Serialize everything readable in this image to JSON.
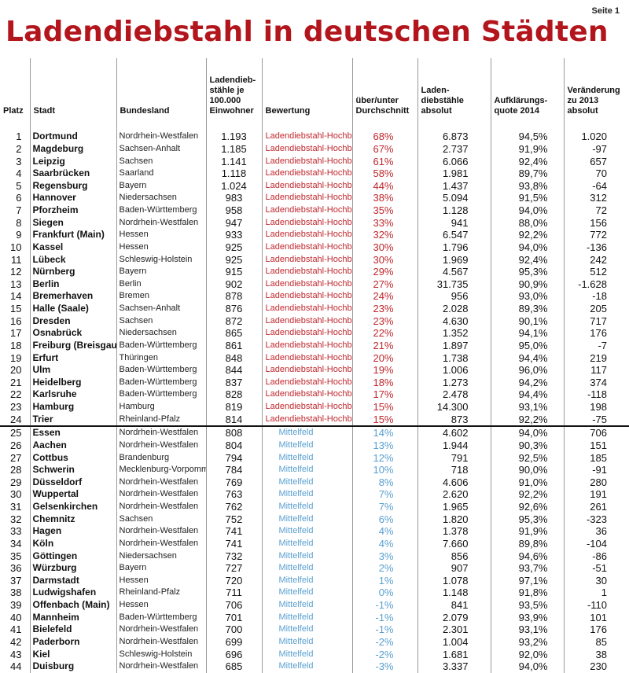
{
  "page_label": "Seite 1",
  "title": "Ladendiebstahl in deutschen Städten",
  "headers": [
    "Platz",
    "Stadt",
    "Bundesland",
    "Ladendieb-stähle je 100.000 Einwohner",
    "Bewertung",
    "über/unter Durchschnitt",
    "Laden-diebstähle absolut",
    "Aufklärungs-quote 2014",
    "Veränderung zu 2013 absolut"
  ],
  "colors": {
    "title": "#b3151c",
    "hotspot": "#c1272d",
    "average": "#5aa0d0"
  },
  "rows": [
    [
      "1",
      "Dortmund",
      "Nordrhein-Westfalen",
      "1.193",
      "Ladendiebstahl-Hochburg",
      "68%",
      "6.873",
      "94,5%",
      "1.020"
    ],
    [
      "2",
      "Magdeburg",
      "Sachsen-Anhalt",
      "1.185",
      "Ladendiebstahl-Hochburg",
      "67%",
      "2.737",
      "91,9%",
      "-97"
    ],
    [
      "3",
      "Leipzig",
      "Sachsen",
      "1.141",
      "Ladendiebstahl-Hochburg",
      "61%",
      "6.066",
      "92,4%",
      "657"
    ],
    [
      "4",
      "Saarbrücken",
      "Saarland",
      "1.118",
      "Ladendiebstahl-Hochburg",
      "58%",
      "1.981",
      "89,7%",
      "70"
    ],
    [
      "5",
      "Regensburg",
      "Bayern",
      "1.024",
      "Ladendiebstahl-Hochburg",
      "44%",
      "1.437",
      "93,8%",
      "-64"
    ],
    [
      "6",
      "Hannover",
      "Niedersachsen",
      "983",
      "Ladendiebstahl-Hochburg",
      "38%",
      "5.094",
      "91,5%",
      "312"
    ],
    [
      "7",
      "Pforzheim",
      "Baden-Württemberg",
      "958",
      "Ladendiebstahl-Hochburg",
      "35%",
      "1.128",
      "94,0%",
      "72"
    ],
    [
      "8",
      "Siegen",
      "Nordrhein-Westfalen",
      "947",
      "Ladendiebstahl-Hochburg",
      "33%",
      "941",
      "88,0%",
      "156"
    ],
    [
      "9",
      "Frankfurt (Main)",
      "Hessen",
      "933",
      "Ladendiebstahl-Hochburg",
      "32%",
      "6.547",
      "92,2%",
      "772"
    ],
    [
      "10",
      "Kassel",
      "Hessen",
      "925",
      "Ladendiebstahl-Hochburg",
      "30%",
      "1.796",
      "94,0%",
      "-136"
    ],
    [
      "11",
      "Lübeck",
      "Schleswig-Holstein",
      "925",
      "Ladendiebstahl-Hochburg",
      "30%",
      "1.969",
      "92,4%",
      "242"
    ],
    [
      "12",
      "Nürnberg",
      "Bayern",
      "915",
      "Ladendiebstahl-Hochburg",
      "29%",
      "4.567",
      "95,3%",
      "512"
    ],
    [
      "13",
      "Berlin",
      "Berlin",
      "902",
      "Ladendiebstahl-Hochburg",
      "27%",
      "31.735",
      "90,9%",
      "-1.628"
    ],
    [
      "14",
      "Bremerhaven",
      "Bremen",
      "878",
      "Ladendiebstahl-Hochburg",
      "24%",
      "956",
      "93,0%",
      "-18"
    ],
    [
      "15",
      "Halle (Saale)",
      "Sachsen-Anhalt",
      "876",
      "Ladendiebstahl-Hochburg",
      "23%",
      "2.028",
      "89,3%",
      "205"
    ],
    [
      "16",
      "Dresden",
      "Sachsen",
      "872",
      "Ladendiebstahl-Hochburg",
      "23%",
      "4.630",
      "90,1%",
      "717"
    ],
    [
      "17",
      "Osnabrück",
      "Niedersachsen",
      "865",
      "Ladendiebstahl-Hochburg",
      "22%",
      "1.352",
      "94,1%",
      "176"
    ],
    [
      "18",
      "Freiburg (Breisgau)",
      "Baden-Württemberg",
      "861",
      "Ladendiebstahl-Hochburg",
      "21%",
      "1.897",
      "95,0%",
      "-7"
    ],
    [
      "19",
      "Erfurt",
      "Thüringen",
      "848",
      "Ladendiebstahl-Hochburg",
      "20%",
      "1.738",
      "94,4%",
      "219"
    ],
    [
      "20",
      "Ulm",
      "Baden-Württemberg",
      "844",
      "Ladendiebstahl-Hochburg",
      "19%",
      "1.006",
      "96,0%",
      "117"
    ],
    [
      "21",
      "Heidelberg",
      "Baden-Württemberg",
      "837",
      "Ladendiebstahl-Hochburg",
      "18%",
      "1.273",
      "94,2%",
      "374"
    ],
    [
      "22",
      "Karlsruhe",
      "Baden-Württemberg",
      "828",
      "Ladendiebstahl-Hochburg",
      "17%",
      "2.478",
      "94,4%",
      "-118"
    ],
    [
      "23",
      "Hamburg",
      "Hamburg",
      "819",
      "Ladendiebstahl-Hochburg",
      "15%",
      "14.300",
      "93,1%",
      "198"
    ],
    [
      "24",
      "Trier",
      "Rheinland-Pfalz",
      "814",
      "Ladendiebstahl-Hochburg",
      "15%",
      "873",
      "92,2%",
      "-75"
    ],
    [
      "25",
      "Essen",
      "Nordrhein-Westfalen",
      "808",
      "Mittelfeld",
      "14%",
      "4.602",
      "94,0%",
      "706"
    ],
    [
      "26",
      "Aachen",
      "Nordrhein-Westfalen",
      "804",
      "Mittelfeld",
      "13%",
      "1.944",
      "90,3%",
      "151"
    ],
    [
      "27",
      "Cottbus",
      "Brandenburg",
      "794",
      "Mittelfeld",
      "12%",
      "791",
      "92,5%",
      "185"
    ],
    [
      "28",
      "Schwerin",
      "Mecklenburg-Vorpommern",
      "784",
      "Mittelfeld",
      "10%",
      "718",
      "90,0%",
      "-91"
    ],
    [
      "29",
      "Düsseldorf",
      "Nordrhein-Westfalen",
      "769",
      "Mittelfeld",
      "8%",
      "4.606",
      "91,0%",
      "280"
    ],
    [
      "30",
      "Wuppertal",
      "Nordrhein-Westfalen",
      "763",
      "Mittelfeld",
      "7%",
      "2.620",
      "92,2%",
      "191"
    ],
    [
      "31",
      "Gelsenkirchen",
      "Nordrhein-Westfalen",
      "762",
      "Mittelfeld",
      "7%",
      "1.965",
      "92,6%",
      "261"
    ],
    [
      "32",
      "Chemnitz",
      "Sachsen",
      "752",
      "Mittelfeld",
      "6%",
      "1.820",
      "95,3%",
      "-323"
    ],
    [
      "33",
      "Hagen",
      "Nordrhein-Westfalen",
      "741",
      "Mittelfeld",
      "4%",
      "1.378",
      "91,9%",
      "36"
    ],
    [
      "34",
      "Köln",
      "Nordrhein-Westfalen",
      "741",
      "Mittelfeld",
      "4%",
      "7.660",
      "89,8%",
      "-104"
    ],
    [
      "35",
      "Göttingen",
      "Niedersachsen",
      "732",
      "Mittelfeld",
      "3%",
      "856",
      "94,6%",
      "-86"
    ],
    [
      "36",
      "Würzburg",
      "Bayern",
      "727",
      "Mittelfeld",
      "2%",
      "907",
      "93,7%",
      "-51"
    ],
    [
      "37",
      "Darmstadt",
      "Hessen",
      "720",
      "Mittelfeld",
      "1%",
      "1.078",
      "97,1%",
      "30"
    ],
    [
      "38",
      "Ludwigshafen",
      "Rheinland-Pfalz",
      "711",
      "Mittelfeld",
      "0%",
      "1.148",
      "91,8%",
      "1"
    ],
    [
      "39",
      "Offenbach (Main)",
      "Hessen",
      "706",
      "Mittelfeld",
      "-1%",
      "841",
      "93,5%",
      "-110"
    ],
    [
      "40",
      "Mannheim",
      "Baden-Württemberg",
      "701",
      "Mittelfeld",
      "-1%",
      "2.079",
      "93,9%",
      "101"
    ],
    [
      "41",
      "Bielefeld",
      "Nordrhein-Westfalen",
      "700",
      "Mittelfeld",
      "-1%",
      "2.301",
      "93,1%",
      "176"
    ],
    [
      "42",
      "Paderborn",
      "Nordrhein-Westfalen",
      "699",
      "Mittelfeld",
      "-2%",
      "1.004",
      "93,2%",
      "85"
    ],
    [
      "43",
      "Kiel",
      "Schleswig-Holstein",
      "696",
      "Mittelfeld",
      "-2%",
      "1.681",
      "92,0%",
      "38"
    ],
    [
      "44",
      "Duisburg",
      "Nordrhein-Westfalen",
      "685",
      "Mittelfeld",
      "-3%",
      "3.337",
      "94,0%",
      "230"
    ]
  ]
}
